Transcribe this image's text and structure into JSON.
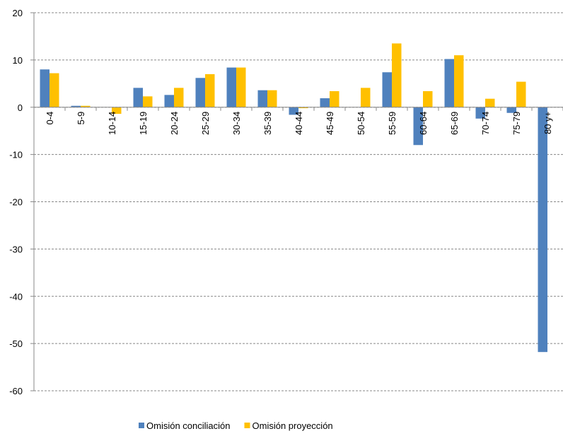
{
  "chart_data": {
    "type": "bar",
    "categories": [
      "0-4",
      "5-9",
      "10-14",
      "15-19",
      "20-24",
      "25-29",
      "30-34",
      "35-39",
      "40-44",
      "45-49",
      "50-54",
      "55-59",
      "60-64",
      "65-69",
      "70-74",
      "75-79",
      "80 y+"
    ],
    "series": [
      {
        "name": "Omisión conciliación",
        "color": "#4f81bd",
        "values": [
          8,
          0.3,
          0,
          4.1,
          2.6,
          6.2,
          8.4,
          3.6,
          -1.6,
          1.9,
          0,
          7.4,
          -8,
          10.2,
          -2.4,
          -1.2,
          -51.8
        ]
      },
      {
        "name": "Omisión proyección",
        "color": "#ffc000",
        "values": [
          7.2,
          0.3,
          -1.4,
          2.3,
          4.1,
          7,
          8.4,
          3.6,
          -0.2,
          3.4,
          4.1,
          13.5,
          3.4,
          11,
          1.8,
          5.4,
          null
        ]
      }
    ],
    "ylim": [
      -60,
      20
    ],
    "yticks": [
      -60,
      -50,
      -40,
      -30,
      -20,
      -10,
      0,
      10,
      20
    ],
    "grid": true,
    "legend": "bottom"
  }
}
